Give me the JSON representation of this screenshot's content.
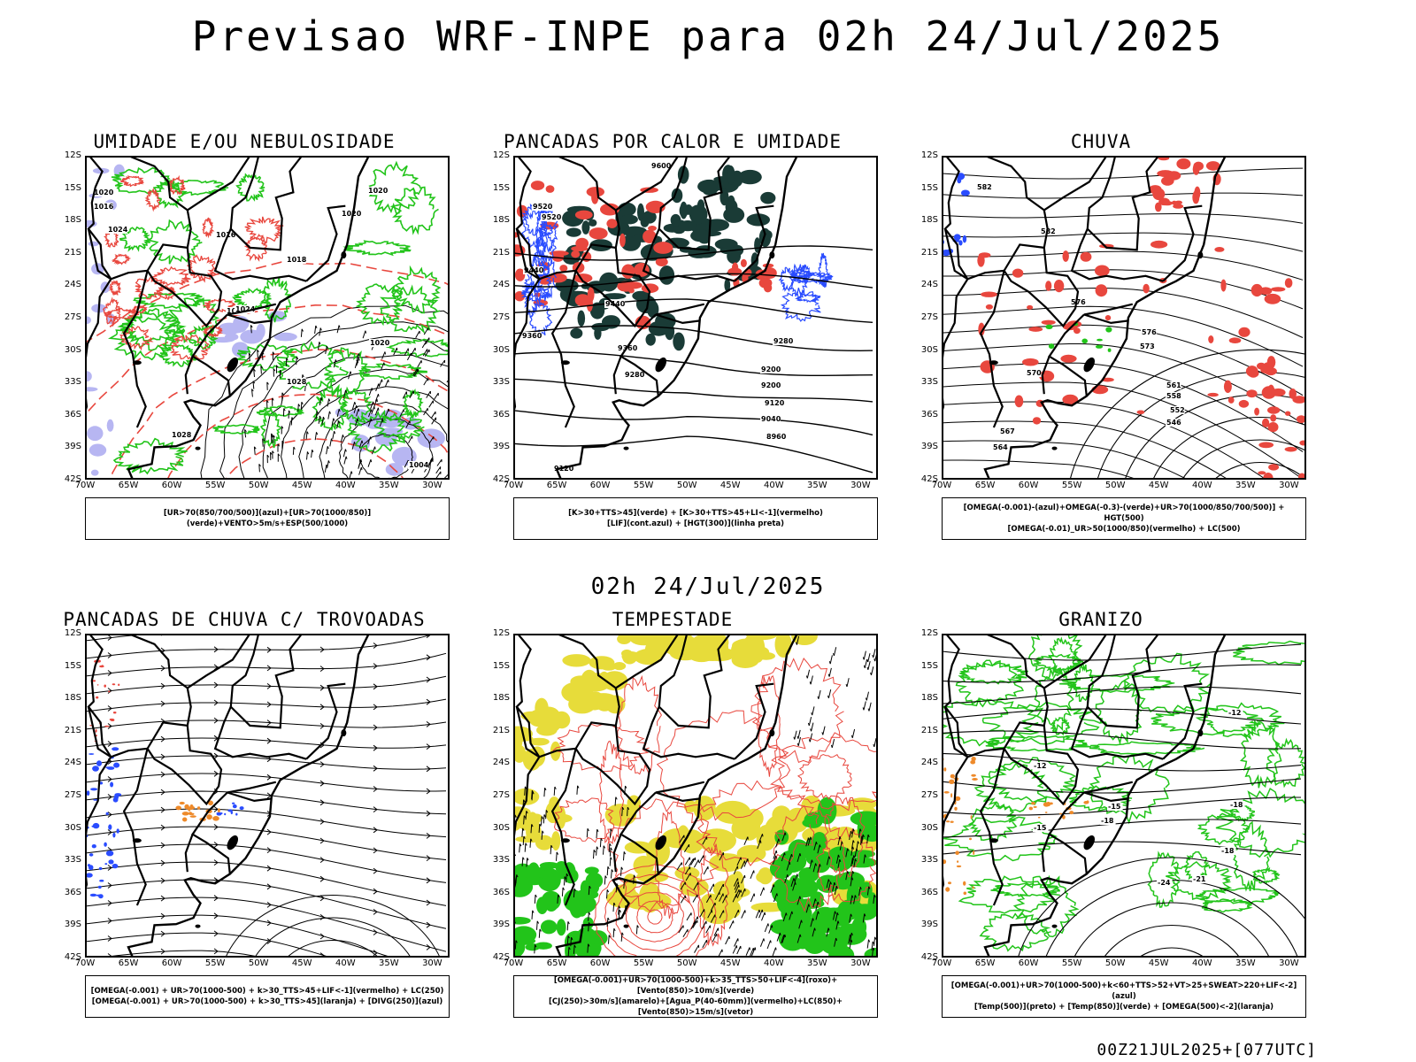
{
  "main_title": "Previsao WRF-INPE  para 02h 24/Jul/2025",
  "mid_title": "02h 24/Jul/2025",
  "footer": "00Z21JUL2025+[077UTC]",
  "lat_ticks": [
    "12S",
    "15S",
    "18S",
    "21S",
    "24S",
    "27S",
    "30S",
    "33S",
    "36S",
    "39S",
    "42S"
  ],
  "lon_ticks": [
    "70W",
    "65W",
    "60W",
    "55W",
    "50W",
    "45W",
    "40W",
    "35W",
    "30W"
  ],
  "colors": {
    "green": "#22c41a",
    "red": "#e8473e",
    "blue": "#2a4cff",
    "lavender": "#b7b6f2",
    "dark_teal": "#1a3b36",
    "yellow": "#e7dc3a",
    "orange": "#ee8a2a",
    "black": "#000000"
  },
  "panels": [
    {
      "id": "umidade",
      "title": "UMIDADE E/OU NEBULOSIDADE",
      "legend": [
        "[UR>70(850/700/500)](azul)+[UR>70(1000/850)](verde)+VENTO>5m/s+ESP(500/1000)"
      ],
      "contour_labels": [
        "1020",
        "1016",
        "1024",
        "1016",
        "1020",
        "1018",
        "1020",
        "1020",
        "1020",
        "1028",
        "1028",
        "1024",
        "1004"
      ]
    },
    {
      "id": "pancadas_calor",
      "title": "PANCADAS POR CALOR E UMIDADE",
      "legend": [
        "[K>30+TTS>45](verde) + [K>30+TTS>45+LI<-1](vermelho)",
        "[LIF](cont.azul) + [HGT(300)](linha preta)"
      ],
      "contour_labels": [
        "9600",
        "9520",
        "9520",
        "9440",
        "9440",
        "9360",
        "9360",
        "9280",
        "9280",
        "9200",
        "9200",
        "9120",
        "9040",
        "8960",
        "9120"
      ]
    },
    {
      "id": "chuva",
      "title": "CHUVA",
      "legend": [
        "[OMEGA(-0.001)-(azul)+OMEGA(-0.3)-(verde)+UR>70(1000/850/700/500)] + HGT(500)",
        "[OMEGA(-0.01)_UR>50(1000/850)(vermelho) + LC(500)"
      ],
      "contour_labels": [
        "582",
        "582",
        "576",
        "576",
        "573",
        "570",
        "567",
        "564",
        "561",
        "558",
        "552",
        "546"
      ]
    },
    {
      "id": "pancadas_trovoadas",
      "title": "PANCADAS DE CHUVA C/ TROVOADAS",
      "legend": [
        "[OMEGA(-0.001) + UR>70(1000-500) + k>30_TTS>45+LIF<-1](vermelho) + LC(250)",
        "[OMEGA(-0.001) + UR>70(1000-500) + k>30_TTS>45](laranja) + [DIVG(250)](azul)"
      ],
      "contour_labels": []
    },
    {
      "id": "tempestade",
      "title": "TEMPESTADE",
      "legend": [
        "[OMEGA(-0.001)+UR>70(1000-500)+k>35_TTS>50+LIF<-4](roxo)+[Vento(850)>10m/s](verde)",
        "[CJ(250)>30m/s](amarelo)+[Agua_P(40-60mm)](vermelho)+LC(850)+[Vento(850)>15m/s](vetor)"
      ],
      "contour_labels": []
    },
    {
      "id": "granizo",
      "title": "GRANIZO",
      "legend": [
        "[OMEGA(-0.001)+UR>70(1000-500)+k<60+TTS>52+VT>25+SWEAT>220+LIF<-2](azul)",
        "[Temp(500)](preto) + [Temp(850)](verde) + [OMEGA(500)<-2](laranja)"
      ],
      "contour_labels": [
        "-12",
        "-12",
        "-15",
        "-18",
        "-18",
        "-15",
        "-18",
        "-24",
        "-21"
      ]
    }
  ]
}
